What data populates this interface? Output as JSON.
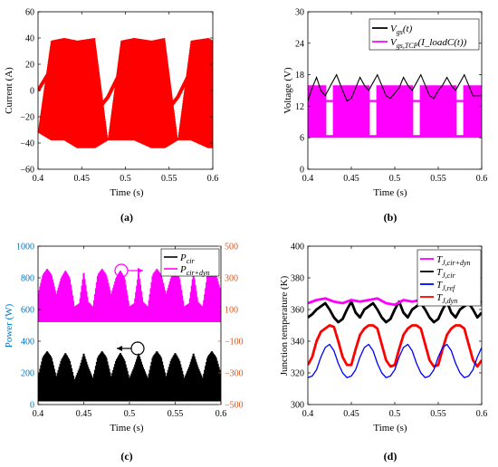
{
  "panels": [
    {
      "id": "a",
      "caption": "(a)",
      "chart_data": {
        "type": "line",
        "xlabel": "Time (s)",
        "ylabel": "Current (A)",
        "xlim": [
          0.4,
          0.6
        ],
        "ylim": [
          -60,
          60
        ],
        "xticks": [
          0.4,
          0.45,
          0.5,
          0.55,
          0.6
        ],
        "xtick_labels": [
          "0.4",
          "0.45",
          "0.5",
          "0.55",
          "0.6"
        ],
        "yticks": [
          -60,
          -40,
          -20,
          0,
          20,
          40,
          60
        ],
        "ytick_labels": [
          "−60",
          "−40",
          "−20",
          "0",
          "20",
          "40",
          "60"
        ],
        "grid": false,
        "series": [
          {
            "color": "#ff0000",
            "style": "switching-band",
            "x": [
              0.4,
              0.415,
              0.43,
              0.445,
              0.465,
              0.48,
              0.495,
              0.51,
              0.53,
              0.545,
              0.56,
              0.575,
              0.595,
              0.6
            ],
            "upper": [
              -32,
              38,
              40,
              38,
              40,
              -38,
              38,
              40,
              38,
              40,
              -38,
              38,
              40,
              38
            ],
            "lower": [
              -32,
              -38,
              -38,
              -44,
              -44,
              -38,
              -38,
              -38,
              -44,
              -44,
              -38,
              -38,
              -44,
              -44
            ],
            "x_mid": [
              0.4,
              0.42,
              0.44,
              0.46,
              0.48,
              0.5,
              0.52,
              0.54,
              0.56,
              0.58,
              0.6
            ],
            "mid": [
              0,
              22,
              10,
              -22,
              -5,
              22,
              10,
              -22,
              -5,
              22,
              10
            ]
          }
        ]
      }
    },
    {
      "id": "b",
      "caption": "(b)",
      "chart_data": {
        "type": "line",
        "xlabel": "Time (s)",
        "ylabel": "Voltage (V)",
        "xlim": [
          0.4,
          0.6
        ],
        "ylim": [
          0,
          30
        ],
        "xticks": [
          0.4,
          0.45,
          0.5,
          0.55,
          0.6
        ],
        "xtick_labels": [
          "0.4",
          "0.45",
          "0.5",
          "0.55",
          "0.6"
        ],
        "yticks": [
          0,
          6,
          12,
          18,
          24,
          30
        ],
        "ytick_labels": [
          "0",
          "6",
          "12",
          "18",
          "24",
          "30"
        ],
        "legend_position": "top-right",
        "grid": false,
        "series": [
          {
            "name": "V_gs(t)",
            "color": "#000000",
            "x": [
              0.4,
              0.405,
              0.41,
              0.415,
              0.42,
              0.428,
              0.433,
              0.44,
              0.445,
              0.45,
              0.455,
              0.46,
              0.465,
              0.47,
              0.475,
              0.48,
              0.485,
              0.49,
              0.495,
              0.5,
              0.505,
              0.51,
              0.515,
              0.52,
              0.525,
              0.53,
              0.535,
              0.54,
              0.545,
              0.55,
              0.555,
              0.56,
              0.565,
              0.57,
              0.575,
              0.58,
              0.585,
              0.59,
              0.6
            ],
            "values": [
              13,
              15.5,
              17.5,
              15,
              14,
              16.5,
              18,
              15,
              13,
              13.5,
              15.5,
              17.5,
              16,
              15,
              16.5,
              18,
              16,
              14,
              13.5,
              14.5,
              15.5,
              17.5,
              16,
              15,
              16.5,
              18,
              16,
              14,
              13.5,
              15,
              16,
              17.5,
              16,
              15,
              16.5,
              18,
              16,
              14,
              14
            ]
          },
          {
            "name": "V_gs,TCP(I_loadC(t))",
            "color": "#ff00ff",
            "x": [
              0.4,
              0.41,
              0.42,
              0.43,
              0.44,
              0.45,
              0.46,
              0.47,
              0.48,
              0.49,
              0.5,
              0.51,
              0.52,
              0.53,
              0.54,
              0.55,
              0.56,
              0.57,
              0.58,
              0.59,
              0.6
            ],
            "values": [
              12,
              12.5,
              13,
              13,
              12.5,
              12,
              12.5,
              13,
              13,
              12.5,
              12,
              12.5,
              13,
              13,
              12.5,
              12,
              12.5,
              13,
              13,
              12.5,
              12
            ],
            "switching_low": 6,
            "switching_high": 16
          }
        ]
      }
    },
    {
      "id": "c",
      "caption": "(c)",
      "chart_data": {
        "type": "area",
        "xlabel": "Time (s)",
        "ylabel_left": "Power (W)",
        "ylim_left": [
          0,
          1000
        ],
        "yticks_left": [
          0,
          200,
          400,
          600,
          800,
          1000
        ],
        "ytick_labels_left": [
          "0",
          "200",
          "400",
          "600",
          "800",
          "1000"
        ],
        "ylim_right": [
          -500,
          500
        ],
        "yticks_right": [
          -500,
          -300,
          -100,
          100,
          300,
          500
        ],
        "ytick_labels_right": [
          "−500",
          "−300",
          "−100",
          "100",
          "300",
          "500"
        ],
        "xlim": [
          0.4,
          0.6
        ],
        "xticks": [
          0.4,
          0.45,
          0.5,
          0.55,
          0.6
        ],
        "xtick_labels": [
          "0.4",
          "0.45",
          "0.5",
          "0.55",
          "0.6"
        ],
        "legend_position": "top-right",
        "left_axis_color": "#0072bd",
        "right_axis_color": "#d95319",
        "grid": false,
        "series": [
          {
            "name": "P_cir",
            "color": "#000000",
            "axis": "left",
            "x": [
              0.4,
              0.405,
              0.41,
              0.415,
              0.42,
              0.425,
              0.43,
              0.435,
              0.44,
              0.445,
              0.45,
              0.455,
              0.46,
              0.465,
              0.47,
              0.475,
              0.48,
              0.485,
              0.49,
              0.495,
              0.5,
              0.505,
              0.51,
              0.515,
              0.52,
              0.525,
              0.53,
              0.535,
              0.54,
              0.545,
              0.55,
              0.555,
              0.56,
              0.565,
              0.57,
              0.575,
              0.58,
              0.585,
              0.59,
              0.595,
              0.6
            ],
            "upper": [
              180,
              300,
              340,
              300,
              180,
              280,
              330,
              280,
              160,
              230,
              330,
              240,
              170,
              300,
              340,
              300,
              180,
              280,
              330,
              280,
              170,
              240,
              330,
              240,
              170,
              300,
              340,
              300,
              180,
              280,
              330,
              280,
              170,
              240,
              330,
              240,
              170,
              300,
              340,
              300,
              200
            ],
            "lower": 20
          },
          {
            "name": "P_cir+dyn",
            "color": "#ff00ff",
            "axis": "left",
            "x": [
              0.4,
              0.405,
              0.41,
              0.415,
              0.42,
              0.425,
              0.43,
              0.435,
              0.44,
              0.445,
              0.45,
              0.455,
              0.46,
              0.465,
              0.47,
              0.475,
              0.48,
              0.485,
              0.49,
              0.495,
              0.5,
              0.505,
              0.51,
              0.515,
              0.52,
              0.525,
              0.53,
              0.535,
              0.54,
              0.545,
              0.55,
              0.555,
              0.56,
              0.565,
              0.57,
              0.575,
              0.58,
              0.585,
              0.59,
              0.595,
              0.6
            ],
            "upper": [
              700,
              820,
              860,
              820,
              700,
              800,
              850,
              800,
              620,
              640,
              850,
              650,
              620,
              820,
              860,
              820,
              700,
              800,
              850,
              800,
              620,
              640,
              850,
              650,
              620,
              820,
              860,
              820,
              700,
              800,
              850,
              800,
              620,
              640,
              850,
              650,
              620,
              820,
              860,
              820,
              720
            ],
            "lower": 520
          }
        ]
      }
    },
    {
      "id": "d",
      "caption": "(d)",
      "chart_data": {
        "type": "line",
        "xlabel": "Time (s)",
        "ylabel": "Junction temperature (K)",
        "xlim": [
          0.4,
          0.6
        ],
        "ylim": [
          300,
          400
        ],
        "xticks": [
          0.4,
          0.45,
          0.5,
          0.55,
          0.6
        ],
        "xtick_labels": [
          "0.4",
          "0.45",
          "0.5",
          "0.55",
          "0.6"
        ],
        "yticks": [
          300,
          320,
          340,
          360,
          380,
          400
        ],
        "ytick_labels": [
          "300",
          "320",
          "340",
          "360",
          "380",
          "400"
        ],
        "legend_position": "top-right",
        "grid": false,
        "series": [
          {
            "name": "T_J,cir+dyn",
            "color": "#ff00ff",
            "x": [
              0.4,
              0.41,
              0.42,
              0.43,
              0.44,
              0.45,
              0.46,
              0.47,
              0.48,
              0.49,
              0.5,
              0.51,
              0.52,
              0.53,
              0.54,
              0.55,
              0.56,
              0.57,
              0.58,
              0.59,
              0.6
            ],
            "values": [
              364,
              366,
              367,
              365,
              364,
              366,
              365,
              366,
              367,
              364,
              363,
              366,
              365,
              366,
              366,
              364,
              363,
              365,
              364,
              363,
              365
            ],
            "band": 2.5
          },
          {
            "name": "T_J,cir",
            "color": "#000000",
            "x": [
              0.4,
              0.405,
              0.41,
              0.415,
              0.42,
              0.425,
              0.43,
              0.435,
              0.44,
              0.445,
              0.45,
              0.455,
              0.46,
              0.465,
              0.47,
              0.475,
              0.48,
              0.485,
              0.49,
              0.495,
              0.5,
              0.505,
              0.51,
              0.515,
              0.52,
              0.525,
              0.53,
              0.535,
              0.54,
              0.545,
              0.55,
              0.555,
              0.56,
              0.565,
              0.57,
              0.575,
              0.58,
              0.585,
              0.59,
              0.595,
              0.6
            ],
            "values": [
              355,
              357,
              360,
              362,
              364,
              360,
              355,
              352,
              354,
              360,
              365,
              358,
              355,
              360,
              362,
              364,
              360,
              355,
              352,
              354,
              360,
              365,
              358,
              355,
              360,
              362,
              364,
              360,
              355,
              352,
              354,
              360,
              365,
              358,
              355,
              360,
              362,
              364,
              360,
              355,
              358
            ],
            "band": 2.5
          },
          {
            "name": "T_J,ref",
            "color": "#0000ff",
            "x": [
              0.4,
              0.405,
              0.41,
              0.415,
              0.42,
              0.425,
              0.43,
              0.435,
              0.44,
              0.445,
              0.45,
              0.455,
              0.46,
              0.465,
              0.47,
              0.475,
              0.48,
              0.485,
              0.49,
              0.495,
              0.5,
              0.505,
              0.51,
              0.515,
              0.52,
              0.525,
              0.53,
              0.535,
              0.54,
              0.545,
              0.55,
              0.555,
              0.56,
              0.565,
              0.57,
              0.575,
              0.58,
              0.585,
              0.59,
              0.595,
              0.6
            ],
            "values": [
              317,
              318,
              322,
              330,
              336,
              338,
              334,
              326,
              320,
              317,
              318,
              322,
              330,
              336,
              338,
              334,
              326,
              320,
              317,
              318,
              322,
              330,
              336,
              338,
              334,
              326,
              320,
              317,
              318,
              322,
              330,
              336,
              338,
              334,
              326,
              320,
              317,
              318,
              322,
              330,
              336
            ]
          },
          {
            "name": "T_J,dyn",
            "color": "#ff0000",
            "x": [
              0.4,
              0.405,
              0.41,
              0.415,
              0.42,
              0.425,
              0.43,
              0.435,
              0.44,
              0.445,
              0.45,
              0.455,
              0.46,
              0.465,
              0.47,
              0.475,
              0.48,
              0.485,
              0.49,
              0.495,
              0.5,
              0.505,
              0.51,
              0.515,
              0.52,
              0.525,
              0.53,
              0.535,
              0.54,
              0.545,
              0.55,
              0.555,
              0.56,
              0.565,
              0.57,
              0.575,
              0.58,
              0.585,
              0.59,
              0.595,
              0.6
            ],
            "values": [
              325,
              330,
              340,
              346,
              348,
              350,
              349,
              340,
              330,
              325,
              325,
              335,
              344,
              348,
              350,
              350,
              348,
              338,
              328,
              324,
              325,
              335,
              344,
              348,
              350,
              350,
              348,
              338,
              328,
              324,
              325,
              335,
              344,
              348,
              350,
              350,
              348,
              338,
              328,
              324,
              328
            ],
            "band": 2.5
          }
        ]
      }
    }
  ]
}
